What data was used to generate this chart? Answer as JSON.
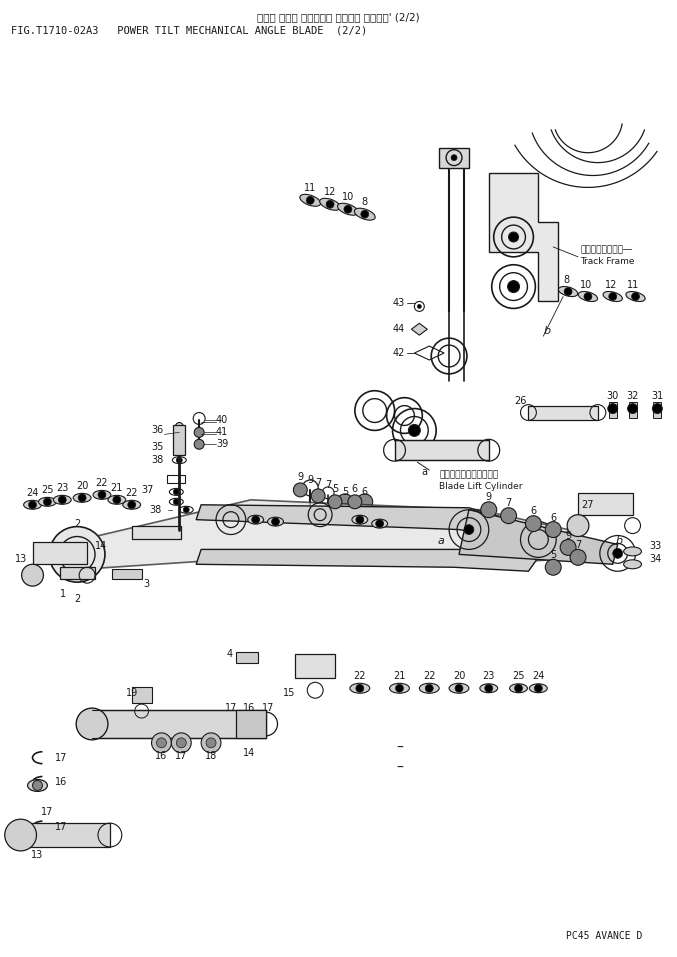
{
  "title_japanese": "パワー チルト メカニカル アングル ブレード' (2/2)",
  "title_english": "FIG.T1710-02A3   POWER TILT MECHANICAL ANGLE BLADE  (2/2)",
  "footer": "PC45 AVANCE D",
  "bg_color": "#ffffff",
  "line_color": "#1a1a1a",
  "fig_width": 6.77,
  "fig_height": 9.57,
  "dpi": 100
}
